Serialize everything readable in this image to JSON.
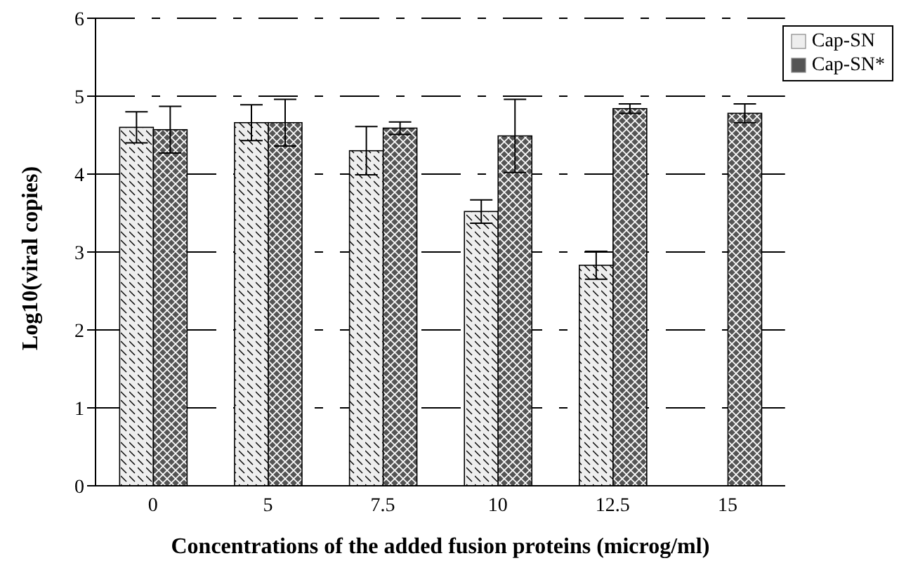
{
  "chart_data": {
    "type": "bar",
    "xlabel": "Concentrations of the added fusion proteins (microg/ml)",
    "ylabel": "Log10(viral copies)",
    "categories": [
      "0",
      "5",
      "7.5",
      "10",
      "12.5",
      "15"
    ],
    "series": [
      {
        "name": "Cap-SN",
        "color": "#eeeeee",
        "values": [
          4.6,
          4.66,
          4.3,
          3.52,
          2.83,
          null
        ],
        "errors": [
          0.2,
          0.23,
          0.31,
          0.15,
          0.18,
          null
        ]
      },
      {
        "name": "Cap-SN*",
        "color": "#555555",
        "values": [
          4.57,
          4.66,
          4.59,
          4.49,
          4.84,
          4.78
        ],
        "errors": [
          0.3,
          0.3,
          0.08,
          0.47,
          0.06,
          0.12
        ]
      }
    ],
    "ylim": [
      0,
      6
    ],
    "yticks": [
      0,
      1,
      2,
      3,
      4,
      5,
      6
    ],
    "grid": "y",
    "legend": "top right"
  }
}
